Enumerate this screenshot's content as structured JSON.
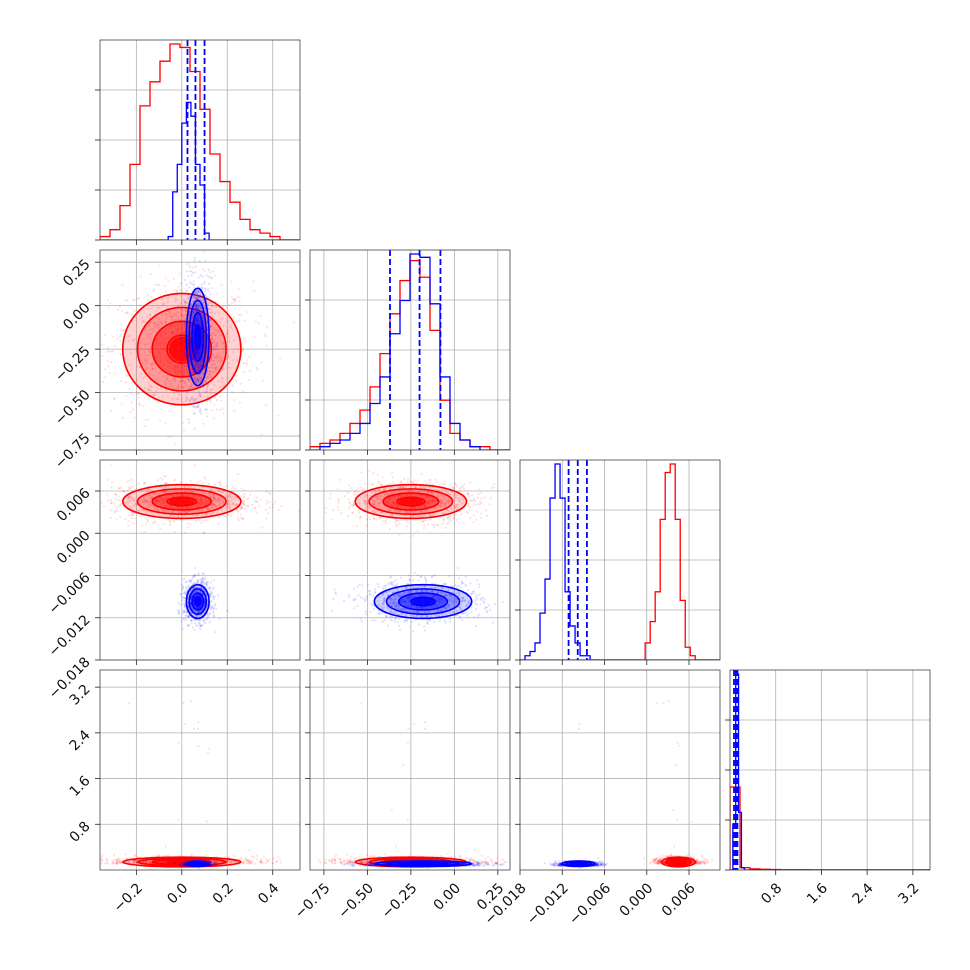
{
  "colors": {
    "red": "#ff0000",
    "blue": "#0000ff",
    "grid": "#b0b0b0"
  },
  "chart_data": {
    "type": "scatter",
    "title": "",
    "variant": "corner-plot",
    "parameters": [
      {
        "range": [
          -0.36,
          0.52
        ],
        "ticks": [
          -0.2,
          0.0,
          0.2,
          0.4
        ],
        "tick_labels": [
          "−0.2",
          "0.0",
          "0.2",
          "0.4"
        ]
      },
      {
        "range": [
          -0.83,
          0.32
        ],
        "ticks": [
          -0.75,
          -0.5,
          -0.25,
          0.0,
          0.25
        ],
        "tick_labels": [
          "−0.75",
          "−0.50",
          "−0.25",
          "0.00",
          "0.25"
        ]
      },
      {
        "range": [
          -0.018,
          0.0104
        ],
        "ticks": [
          -0.018,
          -0.012,
          -0.006,
          0.0,
          0.006
        ],
        "tick_labels": [
          "−0.018",
          "−0.012",
          "−0.006",
          "0.000",
          "0.006"
        ]
      },
      {
        "range": [
          0.0,
          3.5
        ],
        "ticks": [
          0.8,
          1.6,
          2.4,
          3.2
        ],
        "tick_labels": [
          "0.8",
          "1.6",
          "2.4",
          "3.2"
        ]
      }
    ],
    "series": [
      {
        "color": "red",
        "mean": [
          0.0,
          -0.25,
          0.0045,
          0.18
        ],
        "sd": [
          0.13,
          0.16,
          0.0012,
          0.07
        ]
      },
      {
        "color": "blue",
        "mean": [
          0.07,
          -0.18,
          -0.0097,
          0.12
        ],
        "sd": [
          0.025,
          0.14,
          0.0012,
          0.04
        ]
      }
    ],
    "histograms": [
      {
        "red": {
          "edges_start": -0.36,
          "bin_width": 0.044,
          "counts": [
            1,
            3,
            10,
            22,
            39,
            46,
            52,
            57,
            56,
            49,
            38,
            25,
            17,
            11,
            6,
            3,
            2,
            1,
            0,
            0
          ]
        },
        "blue": {
          "edges_start": -0.36,
          "bin_width": 0.02,
          "counts": [
            0,
            0,
            0,
            0,
            0,
            0,
            0,
            0,
            0,
            0,
            0,
            0,
            0,
            0,
            0,
            1,
            14,
            22,
            34,
            40,
            36,
            22,
            16,
            2,
            0,
            0,
            0,
            0,
            0,
            0,
            0,
            0,
            0,
            0,
            0,
            0,
            0,
            0,
            0,
            0,
            0,
            0,
            0,
            0
          ]
        },
        "quantiles": [
          0.025,
          0.06,
          0.1
        ]
      },
      {
        "red": {
          "edges_start": -0.83,
          "bin_width": 0.0575,
          "counts": [
            1,
            2,
            3,
            5,
            8,
            12,
            19,
            29,
            41,
            51,
            57,
            52,
            36,
            15,
            5,
            3,
            1,
            1,
            0,
            0
          ]
        },
        "blue": {
          "edges_start": -0.83,
          "bin_width": 0.0575,
          "counts": [
            0,
            1,
            2,
            3,
            5,
            8,
            14,
            22,
            35,
            45,
            59,
            58,
            44,
            22,
            8,
            3,
            1,
            0,
            0,
            0
          ]
        },
        "quantiles": [
          -0.37,
          -0.2,
          -0.08
        ]
      },
      {
        "red": {
          "edges_start": -0.018,
          "bin_width": 0.000711,
          "counts": [
            0,
            0,
            0,
            0,
            0,
            0,
            0,
            0,
            0,
            0,
            0,
            0,
            0,
            0,
            0,
            0,
            0,
            0,
            0,
            0,
            0,
            0,
            0,
            0,
            0,
            4,
            9,
            16,
            33,
            44,
            46,
            33,
            14,
            3,
            1,
            0,
            0,
            0,
            0,
            0
          ]
        },
        "blue": {
          "edges_start": -0.018,
          "bin_width": 0.000711,
          "counts": [
            0,
            1,
            2,
            4,
            11,
            19,
            38,
            46,
            38,
            16,
            8,
            4,
            1,
            1,
            0,
            0,
            0,
            0,
            0,
            0,
            0,
            0,
            0,
            0,
            0,
            0,
            0,
            0,
            0,
            0,
            0,
            0,
            0,
            0,
            0,
            0,
            0,
            0,
            0,
            0
          ]
        },
        "quantiles": [
          -0.0111,
          -0.0098,
          -0.0085
        ]
      },
      {
        "red": {
          "edges_start": 0.0,
          "bin_width": 0.175,
          "counts": [
            36,
            1,
            0.5,
            0.3,
            0.2,
            0.1,
            0.1,
            0.1,
            0.05,
            0.05,
            0.05,
            0.05,
            0.05,
            0.05,
            0.05,
            0.05,
            0.05,
            0.05,
            0.05,
            0.05
          ]
        },
        "blue": {
          "edges_start": 0.0,
          "bin_width": 0.05,
          "counts": [
            0,
            20,
            85,
            25,
            1,
            0,
            0,
            0,
            0,
            0,
            0,
            0,
            0,
            0,
            0,
            0,
            0,
            0,
            0,
            0,
            0,
            0,
            0,
            0,
            0,
            0,
            0,
            0,
            0,
            0,
            0,
            0,
            0,
            0,
            0,
            0,
            0,
            0,
            0,
            0,
            0,
            0,
            0,
            0,
            0,
            0,
            0,
            0,
            0,
            0,
            0,
            0,
            0,
            0,
            0,
            0,
            0,
            0,
            0,
            0,
            0,
            0,
            0,
            0,
            0,
            0,
            0,
            0,
            0,
            0
          ]
        },
        "quantiles": [
          0.07,
          0.1,
          0.13
        ]
      }
    ],
    "grid": true,
    "legend": "none",
    "xlabel": "",
    "ylabel": ""
  }
}
